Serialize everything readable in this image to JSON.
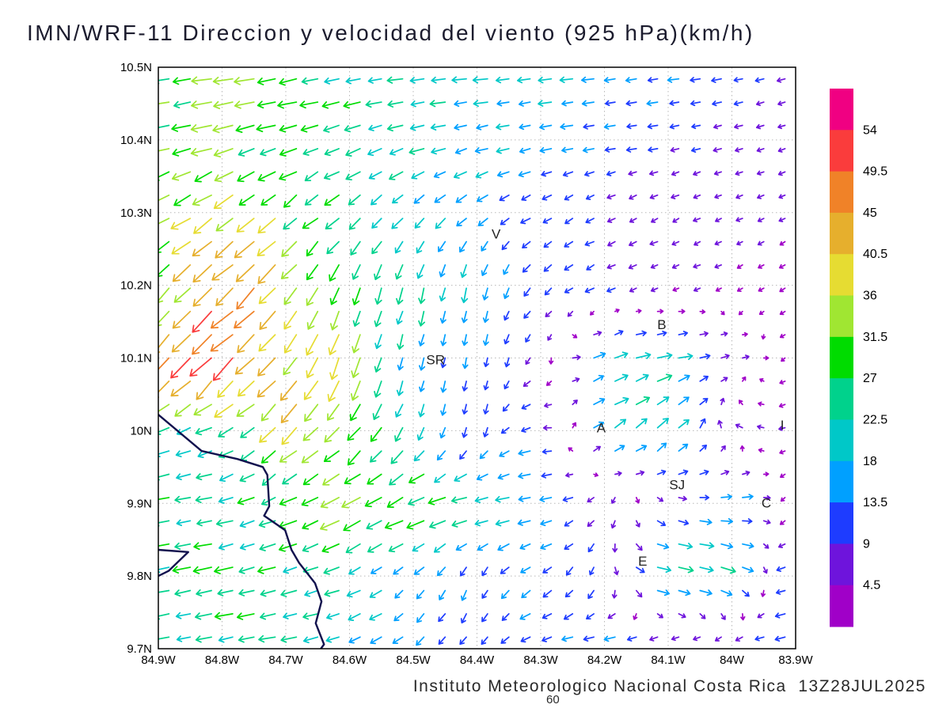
{
  "title": "IMN/WRF-11 Direccion y velocidad del viento (925 hPa)(km/h)",
  "footer": {
    "text": "Instituto Meteorologico Nacional Costa Rica  13Z28JUL2025",
    "frame_label": "60"
  },
  "chart_data": {
    "type": "quiver",
    "title": "IMN/WRF-11 Direccion y velocidad del viento (925 hPa)(km/h)",
    "units": "km/h",
    "level": "925 hPa",
    "lon_range": [
      -84.9,
      -83.9
    ],
    "lat_range": [
      9.7,
      10.5
    ],
    "grid_on": true,
    "x_ticks": [
      {
        "label": "84.9W",
        "lon": -84.9
      },
      {
        "label": "84.8W",
        "lon": -84.8
      },
      {
        "label": "84.7W",
        "lon": -84.7
      },
      {
        "label": "84.6W",
        "lon": -84.6
      },
      {
        "label": "84.5W",
        "lon": -84.5
      },
      {
        "label": "84.4W",
        "lon": -84.4
      },
      {
        "label": "84.3W",
        "lon": -84.3
      },
      {
        "label": "84.2W",
        "lon": -84.2
      },
      {
        "label": "84.1W",
        "lon": -84.1
      },
      {
        "label": "84W",
        "lon": -84.0
      },
      {
        "label": "83.9W",
        "lon": -83.9
      }
    ],
    "y_ticks": [
      {
        "label": "10.5N",
        "lat": 10.5
      },
      {
        "label": "10.4N",
        "lat": 10.4
      },
      {
        "label": "10.3N",
        "lat": 10.3
      },
      {
        "label": "10.2N",
        "lat": 10.2
      },
      {
        "label": "10.1N",
        "lat": 10.1
      },
      {
        "label": "10N",
        "lat": 10.0
      },
      {
        "label": "9.9N",
        "lat": 9.9
      },
      {
        "label": "9.8N",
        "lat": 9.8
      },
      {
        "label": "9.7N",
        "lat": 9.7
      }
    ],
    "colorbar": {
      "position": "right",
      "levels": [
        4.5,
        9,
        13.5,
        18,
        22.5,
        27,
        31.5,
        36,
        40.5,
        45,
        49.5,
        54
      ],
      "colors": [
        "#a000c8",
        "#6e14dc",
        "#1e3cff",
        "#00a0ff",
        "#00c8c8",
        "#00d28c",
        "#00dc00",
        "#a0e632",
        "#e6dc32",
        "#e6af2d",
        "#f08228",
        "#fa3c3c",
        "#f00082"
      ]
    },
    "wind_grid": {
      "comment_units": "u eastward km/h, v northward km/h, rows ordered north to south",
      "lons": [
        -84.9,
        -84.8,
        -84.7,
        -84.6,
        -84.5,
        -84.4,
        -84.3,
        -84.2,
        -84.1,
        -84.0,
        -83.9
      ],
      "lats": [
        10.5,
        10.4,
        10.3,
        10.2,
        10.1,
        10.0,
        9.9,
        9.8,
        9.7
      ],
      "u": [
        [
          -28,
          -30,
          -28,
          -24,
          -22,
          -20,
          -18,
          -16,
          -14,
          -12,
          -8
        ],
        [
          -30,
          -32,
          -26,
          -22,
          -20,
          -18,
          -16,
          -12,
          -10,
          -7,
          -6
        ],
        [
          -26,
          -32,
          -24,
          -18,
          -14,
          -12,
          -10,
          -8,
          -6,
          -5,
          -4
        ],
        [
          -20,
          -34,
          -26,
          -10,
          -6,
          -4,
          -8,
          -10,
          -6,
          -4,
          -3
        ],
        [
          -36,
          -36,
          -26,
          -12,
          -4,
          -2,
          -4,
          18,
          22,
          6,
          -3
        ],
        [
          -18,
          -22,
          -24,
          -22,
          -8,
          -2,
          -14,
          18,
          16,
          -6,
          -4
        ],
        [
          -25,
          -21,
          -24,
          -32,
          -30,
          -24,
          -17,
          -6,
          6,
          18,
          -6
        ],
        [
          -25,
          -27,
          -24,
          -18,
          -10,
          -4,
          -12,
          -2,
          26,
          18,
          -14
        ],
        [
          -22,
          -24,
          -22,
          -18,
          -12,
          -6,
          -14,
          -16,
          -12,
          -10,
          -16
        ]
      ],
      "v": [
        [
          -4,
          -4,
          -6,
          -4,
          -2,
          -2,
          -2,
          -2,
          -2,
          -2,
          -2
        ],
        [
          -6,
          -8,
          -8,
          -8,
          -6,
          -4,
          -3,
          -2,
          -2,
          -2,
          -2
        ],
        [
          -16,
          -24,
          -20,
          -16,
          -14,
          -10,
          -6,
          -4,
          -3,
          -2,
          -2
        ],
        [
          -20,
          -34,
          -30,
          -26,
          -24,
          -18,
          -8,
          -4,
          -2,
          -2,
          -2
        ],
        [
          -38,
          -36,
          -32,
          -34,
          -16,
          -12,
          -6,
          8,
          4,
          2,
          -2
        ],
        [
          -6,
          -10,
          -26,
          -22,
          -18,
          -12,
          -2,
          10,
          16,
          4,
          -2
        ],
        [
          -4,
          -4,
          -10,
          -16,
          -14,
          -4,
          -3,
          -6,
          -4,
          2,
          -3
        ],
        [
          -5,
          -6,
          -6,
          -8,
          -10,
          -12,
          -8,
          -10,
          -4,
          -8,
          -2
        ],
        [
          -4,
          -4,
          -4,
          -6,
          -10,
          -10,
          -4,
          -2,
          -2,
          -2,
          -3
        ]
      ]
    },
    "station_labels": [
      {
        "label": "V",
        "lon": -84.37,
        "lat": 10.27
      },
      {
        "label": "B",
        "lon": -84.11,
        "lat": 10.145
      },
      {
        "label": "SR",
        "lon": -84.465,
        "lat": 10.097
      },
      {
        "label": "A",
        "lon": -84.205,
        "lat": 10.003
      },
      {
        "label": "SJ",
        "lon": -84.086,
        "lat": 9.925
      },
      {
        "label": "C",
        "lon": -83.946,
        "lat": 9.9
      },
      {
        "label": "E",
        "lon": -84.14,
        "lat": 9.82
      },
      {
        "label": "I",
        "lon": -83.921,
        "lat": 10.007
      }
    ],
    "coastline": [
      [
        [
          -84.9,
          10.022
        ],
        [
          -84.832,
          9.972
        ],
        [
          -84.776,
          9.961
        ],
        [
          -84.736,
          9.95
        ],
        [
          -84.729,
          9.939
        ],
        [
          -84.726,
          9.896
        ],
        [
          -84.734,
          9.883
        ],
        [
          -84.701,
          9.863
        ],
        [
          -84.691,
          9.836
        ],
        [
          -84.679,
          9.818
        ],
        [
          -84.654,
          9.79
        ],
        [
          -84.644,
          9.765
        ],
        [
          -84.653,
          9.735
        ],
        [
          -84.64,
          9.706
        ],
        [
          -84.645,
          9.7
        ]
      ],
      [
        [
          -84.9,
          9.836
        ],
        [
          -84.853,
          9.833
        ],
        [
          -84.884,
          9.807
        ],
        [
          -84.9,
          9.8
        ]
      ]
    ],
    "arrow_grid_cols": 30,
    "arrow_grid_rows": 25
  }
}
